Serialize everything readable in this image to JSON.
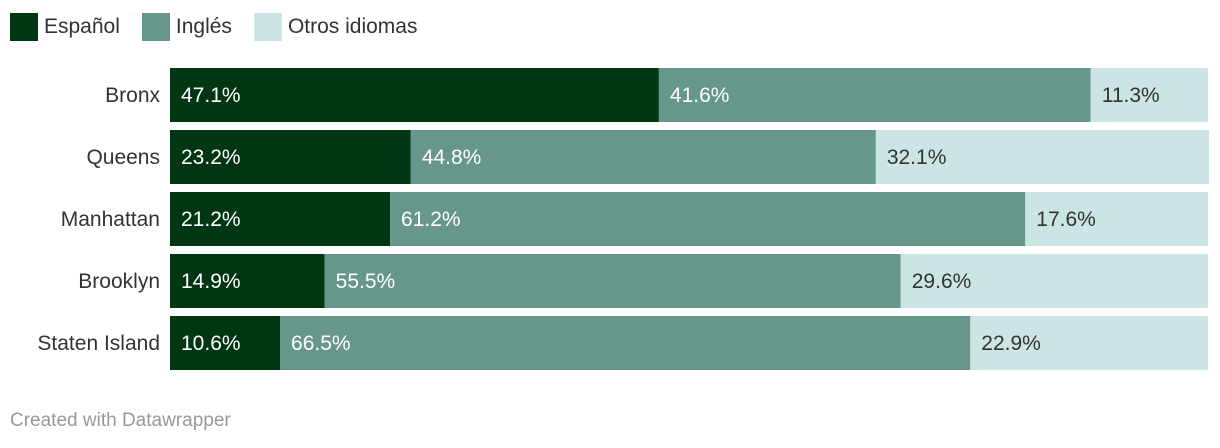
{
  "chart_data": {
    "type": "bar",
    "orientation": "horizontal",
    "stacked": true,
    "categories": [
      "Bronx",
      "Queens",
      "Manhattan",
      "Brooklyn",
      "Staten Island"
    ],
    "series": [
      {
        "name": "Español",
        "values": [
          47.1,
          23.2,
          21.2,
          14.9,
          10.6
        ],
        "color": "#003612",
        "label_color": "#ffffff"
      },
      {
        "name": "Inglés",
        "values": [
          41.6,
          44.8,
          61.2,
          55.5,
          66.5
        ],
        "color": "#66978a",
        "label_color": "#ffffff"
      },
      {
        "name": "Otros idiomas",
        "values": [
          11.3,
          32.1,
          17.6,
          29.6,
          22.9
        ],
        "color": "#cbe5e5",
        "label_color": "#333333"
      }
    ],
    "value_suffix": "%",
    "xlim": [
      0,
      100
    ],
    "legend_position": "top-left",
    "grid": false
  },
  "footer": {
    "credit": "Created with Datawrapper"
  }
}
